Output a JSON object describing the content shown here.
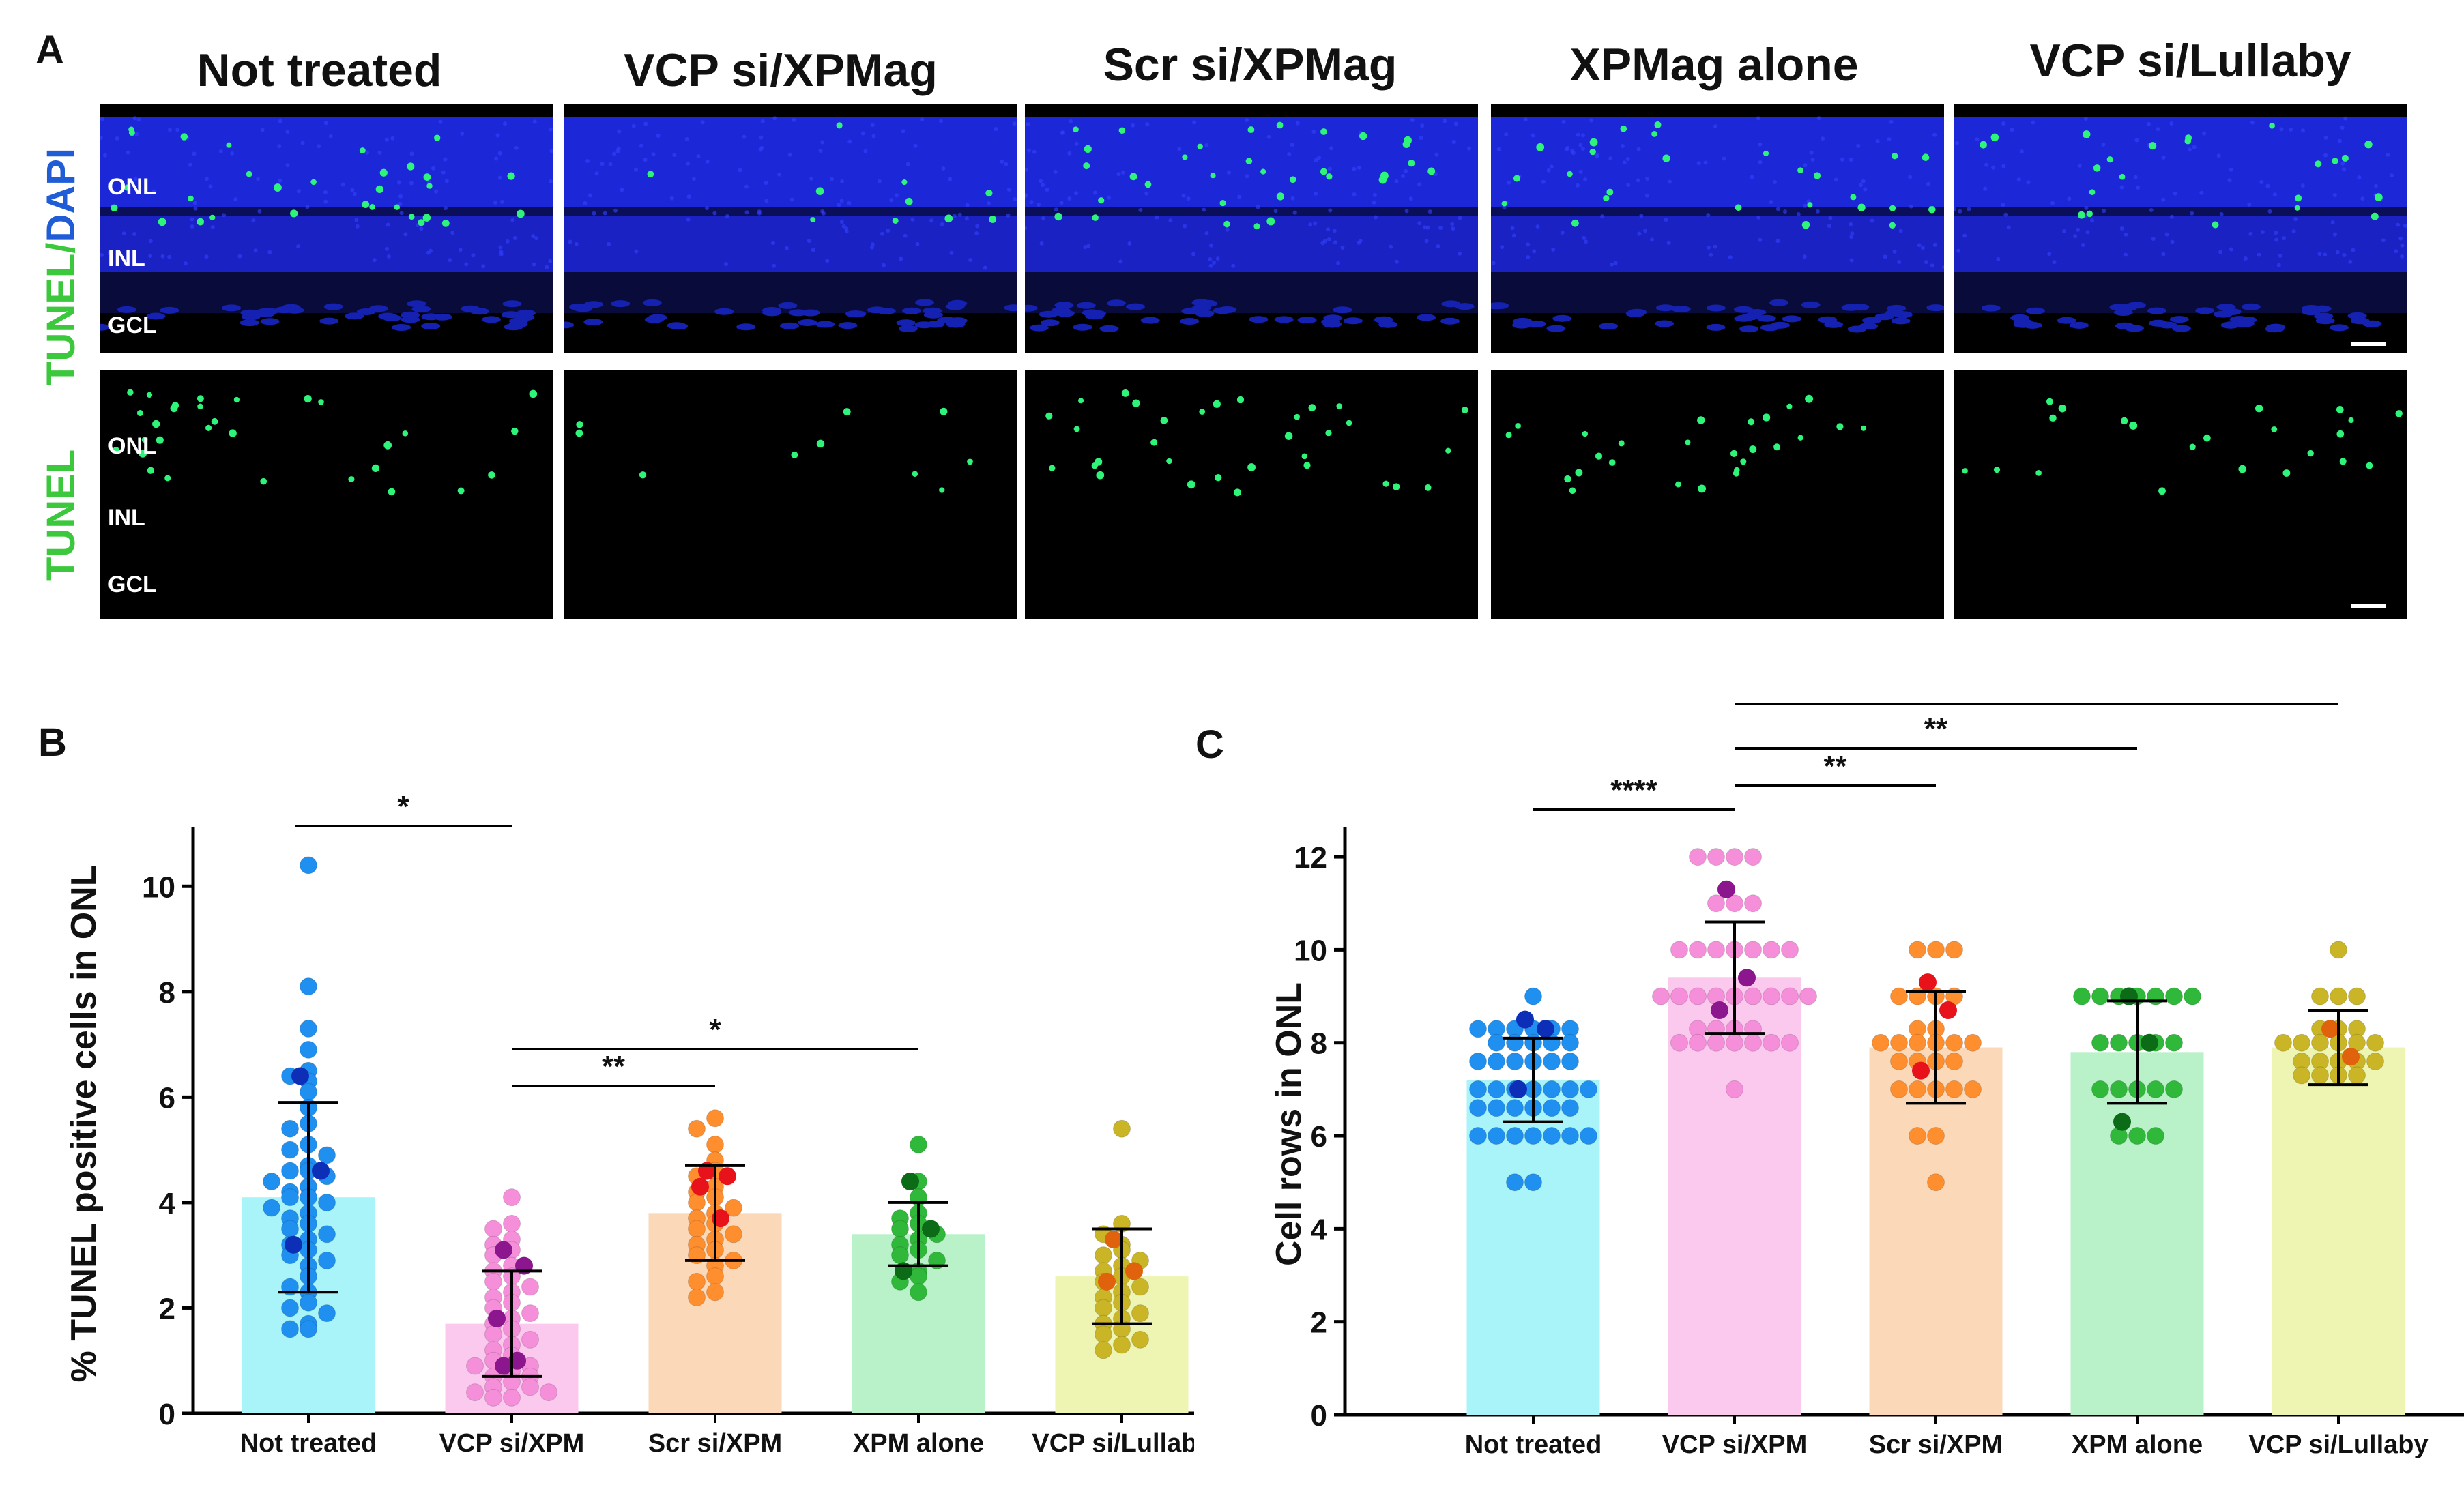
{
  "panel_letters": {
    "a": "A",
    "b": "B",
    "c": "C"
  },
  "panel_a": {
    "columns": [
      "Not treated",
      "VCP si/XPMag",
      "Scr si/XPMag",
      "XPMag alone",
      "VCP si/Lullaby"
    ],
    "row1_stain": {
      "green": "TUNEL",
      "slash": "/",
      "blue": "DAPI"
    },
    "row2_stain": "TUNEL",
    "layers": [
      "ONL",
      "INL",
      "GCL"
    ],
    "colors": {
      "dapi": "#1a24d9",
      "tunel": "#2ef57a",
      "background": "#000000"
    }
  },
  "chart_data": [
    {
      "type": "bar",
      "title": "",
      "xlabel": "",
      "ylabel": "% TUNEL positive cells in ONL",
      "ylim": [
        0,
        11
      ],
      "yticks": [
        0,
        2,
        4,
        6,
        8,
        10
      ],
      "categories": [
        "Not treated",
        "VCP si/XPM",
        "Scr si/XPM",
        "XPM alone",
        "VCP si/Lullaby"
      ],
      "means": [
        4.1,
        1.7,
        3.8,
        3.4,
        2.6
      ],
      "sd": [
        1.8,
        1.0,
        0.9,
        0.6,
        0.9
      ],
      "bar_colors": [
        "#a8f4f8",
        "#fbc9ee",
        "#fbd9b8",
        "#b9f2c8",
        "#eef5b2"
      ],
      "point_colors": [
        "#1f8ff0",
        "#f58fda",
        "#ff8e2e",
        "#2fb83a",
        "#c9b526"
      ],
      "highlight_colors": [
        "#0d2fb8",
        "#8b168e",
        "#e8121a",
        "#0b6b16",
        "#e0620c"
      ],
      "points": [
        [
          10.4,
          8.1,
          7.3,
          6.9,
          6.5,
          6.4,
          6.3,
          6.1,
          5.8,
          5.5,
          5.4,
          5.1,
          5.0,
          4.9,
          4.7,
          4.6,
          4.6,
          4.5,
          4.4,
          4.3,
          4.2,
          4.1,
          4.1,
          4.0,
          3.9,
          3.8,
          3.7,
          3.6,
          3.5,
          3.4,
          3.3,
          3.2,
          3.1,
          3.0,
          2.9,
          2.8,
          2.6,
          2.4,
          2.3,
          2.1,
          2.0,
          1.9,
          1.7,
          1.6,
          1.6
        ],
        [
          4.1,
          3.6,
          3.5,
          3.3,
          3.2,
          3.1,
          3.0,
          2.8,
          2.7,
          2.6,
          2.5,
          2.4,
          2.3,
          2.2,
          2.1,
          2.0,
          1.9,
          1.8,
          1.7,
          1.6,
          1.5,
          1.4,
          1.3,
          1.2,
          1.1,
          1.0,
          0.9,
          0.9,
          0.8,
          0.7,
          0.7,
          0.6,
          0.5,
          0.5,
          0.4,
          0.4,
          0.3,
          0.3
        ],
        [
          5.6,
          5.4,
          5.1,
          4.8,
          4.6,
          4.5,
          4.3,
          4.2,
          4.1,
          4.0,
          3.9,
          3.8,
          3.7,
          3.6,
          3.5,
          3.4,
          3.3,
          3.2,
          3.1,
          3.0,
          2.9,
          2.8,
          2.6,
          2.5,
          2.3,
          2.2
        ],
        [
          5.1,
          4.4,
          4.1,
          3.8,
          3.7,
          3.6,
          3.5,
          3.4,
          3.3,
          3.2,
          3.1,
          3.0,
          2.9,
          2.7,
          2.6,
          2.5,
          2.3
        ],
        [
          5.4,
          3.6,
          3.4,
          3.2,
          3.1,
          3.0,
          2.9,
          2.8,
          2.7,
          2.6,
          2.5,
          2.4,
          2.3,
          2.2,
          2.1,
          2.0,
          1.9,
          1.8,
          1.7,
          1.6,
          1.5,
          1.4,
          1.3,
          1.2
        ]
      ],
      "highlights": [
        [
          6.4,
          4.6,
          3.2
        ],
        [
          3.1,
          2.8,
          1.8,
          1.0,
          0.9
        ],
        [
          4.6,
          4.5,
          4.3,
          3.7
        ],
        [
          4.4,
          3.5,
          2.7
        ],
        [
          3.3,
          2.7,
          2.5
        ]
      ],
      "significance": [
        {
          "from": 0,
          "to": 1,
          "label": "*"
        },
        {
          "from": 1,
          "to": 3,
          "label": "*"
        },
        {
          "from": 1,
          "to": 2,
          "label": "**"
        }
      ]
    },
    {
      "type": "bar",
      "title": "",
      "xlabel": "",
      "ylabel": "Cell rows in ONL",
      "ylim": [
        0,
        12.5
      ],
      "yticks": [
        0,
        2,
        4,
        6,
        8,
        10,
        12
      ],
      "categories": [
        "Not treated",
        "VCP si/XPM",
        "Scr si/XPM",
        "XPM alone",
        "VCP si/Lullaby"
      ],
      "means": [
        7.2,
        9.4,
        7.9,
        7.8,
        7.9
      ],
      "sd": [
        0.9,
        1.2,
        1.2,
        1.1,
        0.8
      ],
      "bar_colors": [
        "#a8f4f8",
        "#fbc9ee",
        "#fbd9b8",
        "#b9f2c8",
        "#eef5b2"
      ],
      "point_colors": [
        "#1f8ff0",
        "#f58fda",
        "#ff8e2e",
        "#2fb83a",
        "#c9b526"
      ],
      "highlight_colors": [
        "#0d2fb8",
        "#8b168e",
        "#e8121a",
        "#0b6b16",
        "#e0620c"
      ],
      "points": [
        [
          9,
          8.3,
          8.3,
          8.3,
          8.3,
          8.3,
          8.3,
          8,
          8,
          8,
          8,
          8,
          7.6,
          7.6,
          7.6,
          7.6,
          7.6,
          7.6,
          7,
          7,
          7,
          7,
          7,
          7,
          7,
          6.6,
          6.6,
          6.6,
          6.6,
          6.6,
          6.6,
          6,
          6,
          6,
          6,
          6,
          6,
          6,
          5,
          5
        ],
        [
          12,
          12,
          12,
          12,
          11,
          11,
          11,
          10,
          10,
          10,
          10,
          10,
          10,
          10,
          9,
          9,
          9,
          9,
          9,
          9,
          9,
          9,
          9,
          8.3,
          8.3,
          8.3,
          8.3,
          8,
          8,
          8,
          8,
          8,
          8,
          8,
          7
        ],
        [
          10,
          10,
          10,
          9,
          9,
          9,
          9,
          8.3,
          8.3,
          8,
          8,
          8,
          8,
          8,
          8,
          7.6,
          7.6,
          7.6,
          7.6,
          7,
          7,
          7,
          7,
          7,
          6,
          6,
          5
        ],
        [
          9,
          9,
          9,
          9,
          9,
          9,
          9,
          8,
          8,
          8,
          8,
          8,
          7,
          7,
          7,
          7,
          7,
          6,
          6,
          6
        ],
        [
          10,
          9,
          9,
          9,
          8.3,
          8.3,
          8.3,
          8,
          8,
          8,
          8,
          8,
          8,
          7.6,
          7.6,
          7.6,
          7.6,
          7.6,
          7.3,
          7.3,
          7.3,
          7.3
        ]
      ],
      "highlights": [
        [
          8.5,
          8.3,
          7.0
        ],
        [
          11.3,
          9.4,
          8.7
        ],
        [
          9.3,
          8.7,
          7.4
        ],
        [
          9.0,
          8.0,
          6.3
        ],
        [
          8.3,
          7.7
        ]
      ],
      "significance": [
        {
          "from": 0,
          "to": 1,
          "label": "****"
        },
        {
          "from": 1,
          "to": 2,
          "label": "**"
        },
        {
          "from": 1,
          "to": 3,
          "label": "**"
        },
        {
          "from": 1,
          "to": 4,
          "label": "**"
        }
      ]
    }
  ]
}
